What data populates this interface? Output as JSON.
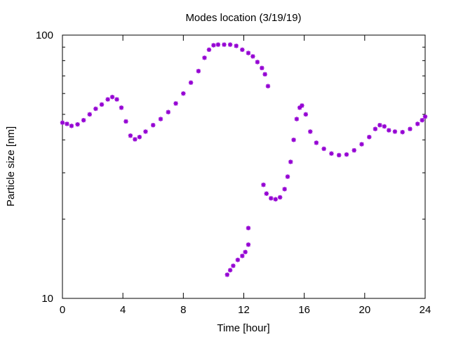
{
  "chart_data": {
    "type": "scatter",
    "title": "Modes location (3/19/19)",
    "xlabel": "Time [hour]",
    "ylabel": "Particle size [nm]",
    "xlim": [
      0,
      24
    ],
    "ylim": [
      10,
      100
    ],
    "yscale": "log",
    "grid": false,
    "marker_color": "#9400d3",
    "marker_shape": "asterisk",
    "x_ticks": [
      0,
      4,
      8,
      12,
      16,
      20,
      24
    ],
    "x_tick_labels": [
      "0",
      "4",
      "8",
      "12",
      "16",
      "20",
      "24"
    ],
    "y_major_ticks": [
      10,
      100
    ],
    "y_tick_labels": [
      "10",
      "100"
    ],
    "y_minor_ticks": [
      20,
      30,
      40,
      50,
      60,
      70,
      80,
      90
    ],
    "series": [
      {
        "points": [
          [
            0.0,
            46.5
          ],
          [
            0.3,
            46.0
          ],
          [
            0.6,
            45.2
          ],
          [
            1.0,
            45.8
          ],
          [
            1.4,
            47.5
          ],
          [
            1.8,
            50.0
          ],
          [
            2.2,
            52.5
          ],
          [
            2.6,
            54.5
          ],
          [
            3.0,
            57.0
          ],
          [
            3.3,
            58.2
          ],
          [
            3.6,
            57.0
          ],
          [
            3.9,
            53.0
          ],
          [
            4.2,
            47.0
          ],
          [
            4.5,
            41.5
          ],
          [
            4.8,
            40.2
          ],
          [
            5.1,
            41.0
          ],
          [
            5.5,
            43.0
          ],
          [
            6.0,
            45.5
          ],
          [
            6.5,
            48.0
          ],
          [
            7.0,
            51.0
          ],
          [
            7.5,
            55.0
          ],
          [
            8.0,
            60.0
          ],
          [
            8.5,
            66.0
          ],
          [
            9.0,
            73.0
          ],
          [
            9.4,
            82.0
          ],
          [
            9.7,
            88.0
          ],
          [
            10.0,
            91.5
          ],
          [
            10.3,
            92.0
          ],
          [
            10.7,
            92.0
          ],
          [
            11.1,
            92.0
          ],
          [
            11.5,
            91.0
          ],
          [
            11.9,
            88.0
          ],
          [
            12.3,
            85.5
          ],
          [
            12.6,
            83.0
          ],
          [
            12.9,
            79.0
          ],
          [
            13.2,
            75.0
          ],
          [
            13.4,
            71.0
          ],
          [
            13.6,
            64.0
          ],
          [
            10.9,
            12.3
          ],
          [
            11.1,
            12.8
          ],
          [
            11.3,
            13.3
          ],
          [
            11.6,
            14.0
          ],
          [
            11.9,
            14.5
          ],
          [
            12.1,
            15.0
          ],
          [
            12.3,
            16.0
          ],
          [
            12.3,
            18.5
          ],
          [
            13.3,
            27.0
          ],
          [
            13.5,
            25.0
          ],
          [
            13.8,
            24.0
          ],
          [
            14.1,
            23.8
          ],
          [
            14.4,
            24.2
          ],
          [
            14.7,
            26.0
          ],
          [
            14.9,
            29.0
          ],
          [
            15.1,
            33.0
          ],
          [
            15.3,
            40.0
          ],
          [
            15.5,
            48.0
          ],
          [
            15.7,
            53.0
          ],
          [
            15.85,
            54.0
          ],
          [
            16.1,
            50.0
          ],
          [
            16.4,
            43.0
          ],
          [
            16.8,
            39.0
          ],
          [
            17.3,
            37.0
          ],
          [
            17.8,
            35.5
          ],
          [
            18.3,
            35.0
          ],
          [
            18.8,
            35.2
          ],
          [
            19.3,
            36.5
          ],
          [
            19.8,
            38.5
          ],
          [
            20.3,
            41.0
          ],
          [
            20.7,
            44.0
          ],
          [
            21.0,
            45.5
          ],
          [
            21.3,
            45.0
          ],
          [
            21.6,
            43.5
          ],
          [
            22.0,
            43.0
          ],
          [
            22.5,
            42.8
          ],
          [
            23.0,
            44.0
          ],
          [
            23.5,
            46.0
          ],
          [
            23.8,
            47.5
          ],
          [
            24.0,
            49.0
          ]
        ]
      }
    ]
  }
}
